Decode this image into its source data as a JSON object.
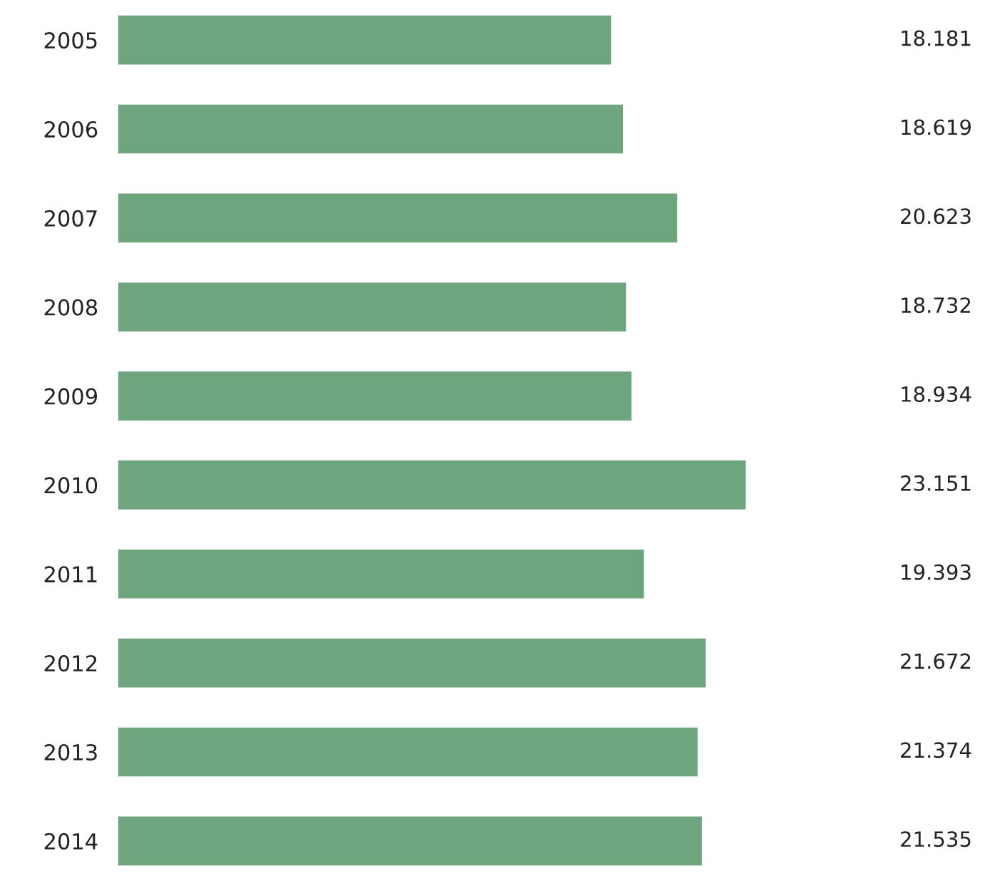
{
  "chart_data": {
    "type": "bar",
    "orientation": "horizontal",
    "categories": [
      "2005",
      "2006",
      "2007",
      "2008",
      "2009",
      "2010",
      "2011",
      "2012",
      "2013",
      "2014"
    ],
    "values": [
      18.181,
      18.619,
      20.623,
      18.732,
      18.934,
      23.151,
      19.393,
      21.672,
      21.374,
      21.535
    ],
    "value_labels": [
      "18.181",
      "18.619",
      "20.623",
      "18.732",
      "18.934",
      "23.151",
      "19.393",
      "21.672",
      "21.374",
      "21.535"
    ],
    "color": "#6ea57f",
    "tick_labels": "y",
    "grid": false,
    "legend": false
  }
}
